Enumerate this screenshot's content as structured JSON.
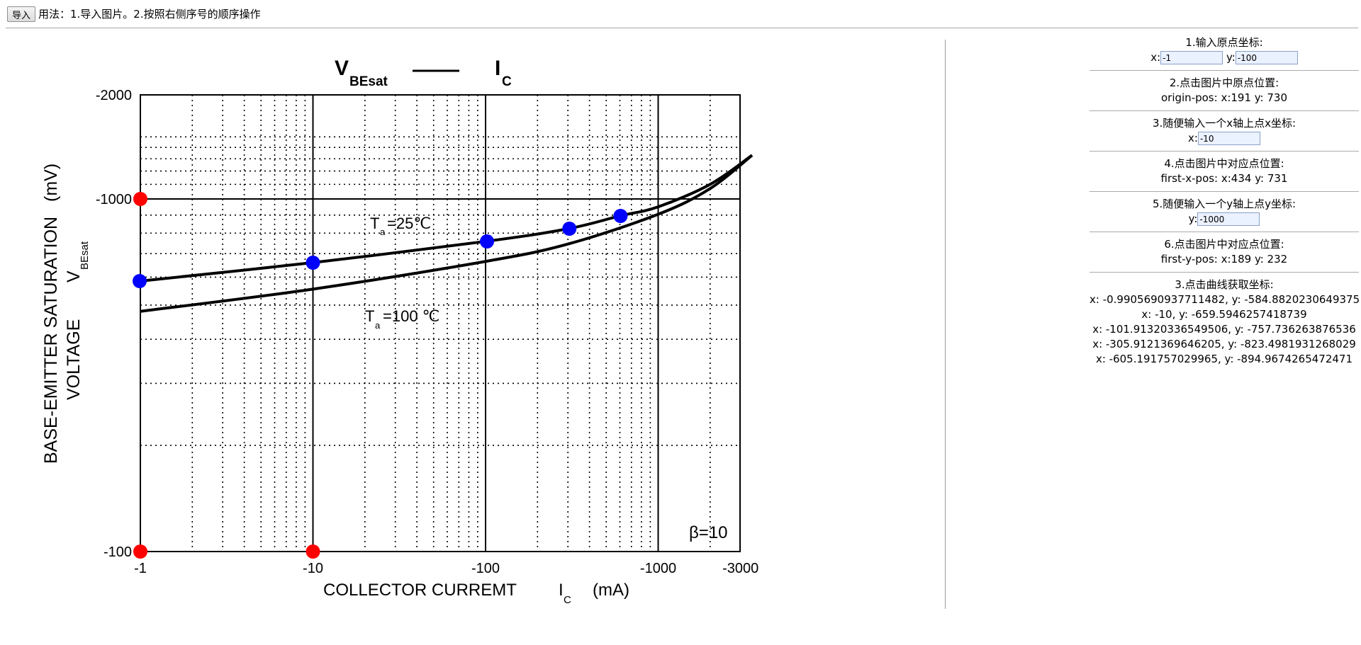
{
  "toolbar": {
    "import_label": "导入",
    "usage_text": "用法：1.导入图片。2.按照右侧序号的顺序操作"
  },
  "panel": {
    "step1": {
      "title": "1.输入原点坐标:",
      "x_label": "x:",
      "x_value": "-1",
      "y_label": "y:",
      "y_value": "-100"
    },
    "step2": {
      "title": "2.点击图片中原点位置:",
      "value": "origin-pos: x:191 y: 730"
    },
    "step3": {
      "title": "3.随便输入一个x轴上点x坐标:",
      "x_label": "x:",
      "x_value": "-10"
    },
    "step4": {
      "title": "4.点击图片中对应点位置:",
      "value": "first-x-pos: x:434 y: 731"
    },
    "step5": {
      "title": "5.随便输入一个y轴上点y坐标:",
      "y_label": "y:",
      "y_value": "-1000"
    },
    "step6": {
      "title": "6.点击图片中对应点位置:",
      "value": "first-y-pos: x:189 y: 232"
    },
    "step7": {
      "title": "3.点击曲线获取坐标:",
      "results": [
        "x: -0.9905690937711482, y: -584.8820230649375",
        "x: -10, y: -659.5946257418739",
        "x: -101.91320336549506, y: -757.736263876536",
        "x: -305.9121369646205, y: -823.4981931268029",
        "x: -605.191757029965, y: -894.9674265472471"
      ]
    }
  },
  "chart_data": {
    "type": "line",
    "title_main": "V",
    "title_sub": "BEsat",
    "title_main2": "I",
    "title_sub2": "C",
    "xlabel": "COLLECTOR CURREMT",
    "xlabel_var": "I",
    "xlabel_var_sub": "C",
    "xlabel_unit": "(mA)",
    "ylabel_line1": "BASE-EMITTER SATURATION",
    "ylabel_unit": "(mV)",
    "ylabel_line2": "VOLTAGE",
    "ylabel_var": "V",
    "ylabel_var_sub": "BEsat",
    "x_scale": "log",
    "y_scale": "log",
    "x_ticks": [
      "-1",
      "-10",
      "-100",
      "-1000",
      "-3000"
    ],
    "y_ticks": [
      "-2000",
      "-1000",
      "-100"
    ],
    "xlim": [
      1,
      3500
    ],
    "ylim": [
      100,
      2000
    ],
    "grid": true,
    "annotation": "β=10",
    "series": [
      {
        "name_main": "T",
        "name_sub": "a",
        "name_rest": "=25℃",
        "x": [
          1,
          10,
          100,
          300,
          600,
          1000,
          2000,
          3500
        ],
        "y": [
          585,
          660,
          758,
          823,
          895,
          950,
          1100,
          1330
        ]
      },
      {
        "name_main": "T",
        "name_sub": "a",
        "name_rest": "=100 ℃",
        "x": [
          1,
          10,
          100,
          300,
          1000,
          2000,
          3500
        ],
        "y": [
          480,
          555,
          665,
          745,
          905,
          1070,
          1330
        ]
      }
    ],
    "calibration_points": [
      {
        "x": 1,
        "y": 1000
      },
      {
        "x": 1,
        "y": 100
      },
      {
        "x": 10,
        "y": 100
      }
    ],
    "picked_points": [
      {
        "x": 0.9905690937711482,
        "y": 584.8820230649375
      },
      {
        "x": 10,
        "y": 659.5946257418739
      },
      {
        "x": 101.91320336549506,
        "y": 757.736263876536
      },
      {
        "x": 305.9121369646205,
        "y": 823.4981931268029
      },
      {
        "x": 605.191757029965,
        "y": 894.9674265472471
      }
    ],
    "colors": {
      "calibration": "#ff0000",
      "picked": "#0000ff",
      "curve": "#000000"
    }
  }
}
